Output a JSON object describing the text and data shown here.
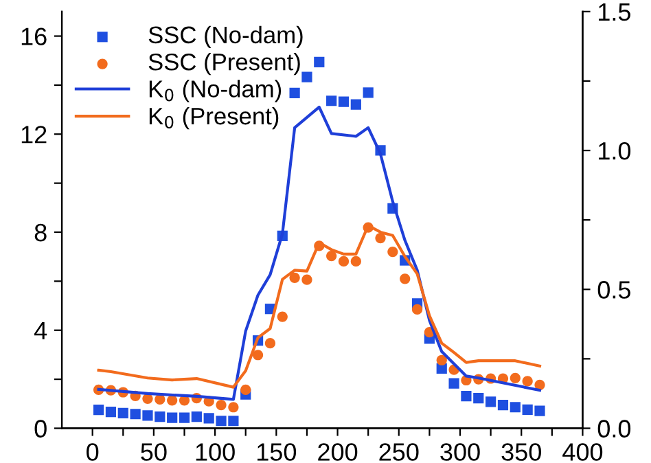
{
  "chart_data": {
    "type": "scatter",
    "x": [
      5,
      15,
      25,
      35,
      45,
      55,
      65,
      75,
      85,
      95,
      105,
      115,
      125,
      135,
      145,
      155,
      165,
      175,
      185,
      195,
      205,
      215,
      225,
      235,
      245,
      255,
      265,
      275,
      285,
      295,
      305,
      315,
      325,
      335,
      345,
      355,
      365
    ],
    "series": [
      {
        "name": "SSC (No-dam)",
        "color": "#1f4fe0",
        "marker": "square",
        "values": [
          0.75,
          0.67,
          0.62,
          0.58,
          0.52,
          0.47,
          0.43,
          0.43,
          0.47,
          0.41,
          0.3,
          0.3,
          1.38,
          3.58,
          4.87,
          7.85,
          13.68,
          14.33,
          14.94,
          13.36,
          13.32,
          13.21,
          13.69,
          11.34,
          8.97,
          6.85,
          5.09,
          3.66,
          2.44,
          1.83,
          1.31,
          1.23,
          1.08,
          0.95,
          0.86,
          0.76,
          0.71
        ]
      },
      {
        "name": "SSC (Present)",
        "color": "#f26b1d",
        "marker": "circle",
        "values": [
          1.57,
          1.55,
          1.47,
          1.32,
          1.21,
          1.18,
          1.14,
          1.14,
          1.23,
          1.1,
          0.95,
          0.86,
          1.57,
          2.99,
          3.47,
          4.55,
          6.14,
          6.06,
          7.44,
          7.03,
          6.81,
          6.81,
          8.19,
          7.76,
          7.2,
          6.1,
          4.85,
          3.92,
          2.78,
          2.39,
          1.96,
          2.0,
          2.03,
          2.03,
          2.05,
          1.92,
          1.77
        ]
      },
      {
        "name": "K$_{0}$ (No-dam)",
        "type": "line",
        "axis": "y2",
        "color": "#1f3fd8",
        "marker": "none",
        "x": [
          5,
          45,
          85,
          115,
          125,
          135,
          145,
          155,
          165,
          185,
          195,
          215,
          225,
          235,
          245,
          255,
          265,
          275,
          285,
          305,
          315,
          365
        ],
        "values": [
          0.14,
          0.125,
          0.115,
          0.104,
          0.35,
          0.479,
          0.553,
          0.7,
          1.082,
          1.156,
          1.061,
          1.051,
          1.082,
          0.988,
          0.816,
          0.676,
          0.569,
          0.388,
          0.276,
          0.188,
          0.181,
          0.137
        ]
      },
      {
        "name": "K$_{0}$ (Present)",
        "type": "line",
        "axis": "y2",
        "color": "#f26b1d",
        "marker": "none",
        "x": [
          5,
          15,
          45,
          65,
          85,
          115,
          125,
          135,
          145,
          155,
          165,
          175,
          185,
          195,
          205,
          215,
          225,
          235,
          245,
          255,
          265,
          275,
          285,
          295,
          305,
          315,
          345,
          365
        ],
        "values": [
          0.209,
          0.204,
          0.181,
          0.174,
          0.179,
          0.148,
          0.207,
          0.326,
          0.359,
          0.536,
          0.569,
          0.566,
          0.668,
          0.643,
          0.627,
          0.627,
          0.73,
          0.706,
          0.694,
          0.618,
          0.556,
          0.405,
          0.306,
          0.273,
          0.237,
          0.243,
          0.243,
          0.224
        ]
      }
    ],
    "xlim": [
      -25,
      400
    ],
    "xticks": [
      0,
      {
        "value": 25,
        "label": null
      },
      50,
      {
        "value": 75,
        "label": null
      },
      100,
      {
        "value": 125,
        "label": null
      },
      150,
      {
        "value": 175,
        "label": null
      },
      200,
      {
        "value": 225,
        "label": null
      },
      250,
      {
        "value": 275,
        "label": null
      },
      300,
      {
        "value": 325,
        "label": null
      },
      350,
      {
        "value": 375,
        "label": null
      },
      400
    ],
    "ylim": [
      0,
      17
    ],
    "yticks": [
      0,
      {
        "value": 2,
        "label": null
      },
      4,
      {
        "value": 6,
        "label": null
      },
      8,
      {
        "value": 10,
        "label": null
      },
      12,
      {
        "value": 14,
        "label": null
      },
      16
    ],
    "y2lim": [
      0,
      1.5
    ],
    "y2ticks": [
      {
        "value": 0,
        "label": "0.0"
      },
      {
        "value": 0.25,
        "label": null
      },
      {
        "value": 0.5,
        "label": "0.5"
      },
      {
        "value": 0.75,
        "label": null
      },
      {
        "value": 1.0,
        "label": "1.0"
      },
      {
        "value": 1.25,
        "label": null
      },
      {
        "value": 1.5,
        "label": "1.5"
      }
    ],
    "grid": false,
    "legend": "top left"
  }
}
